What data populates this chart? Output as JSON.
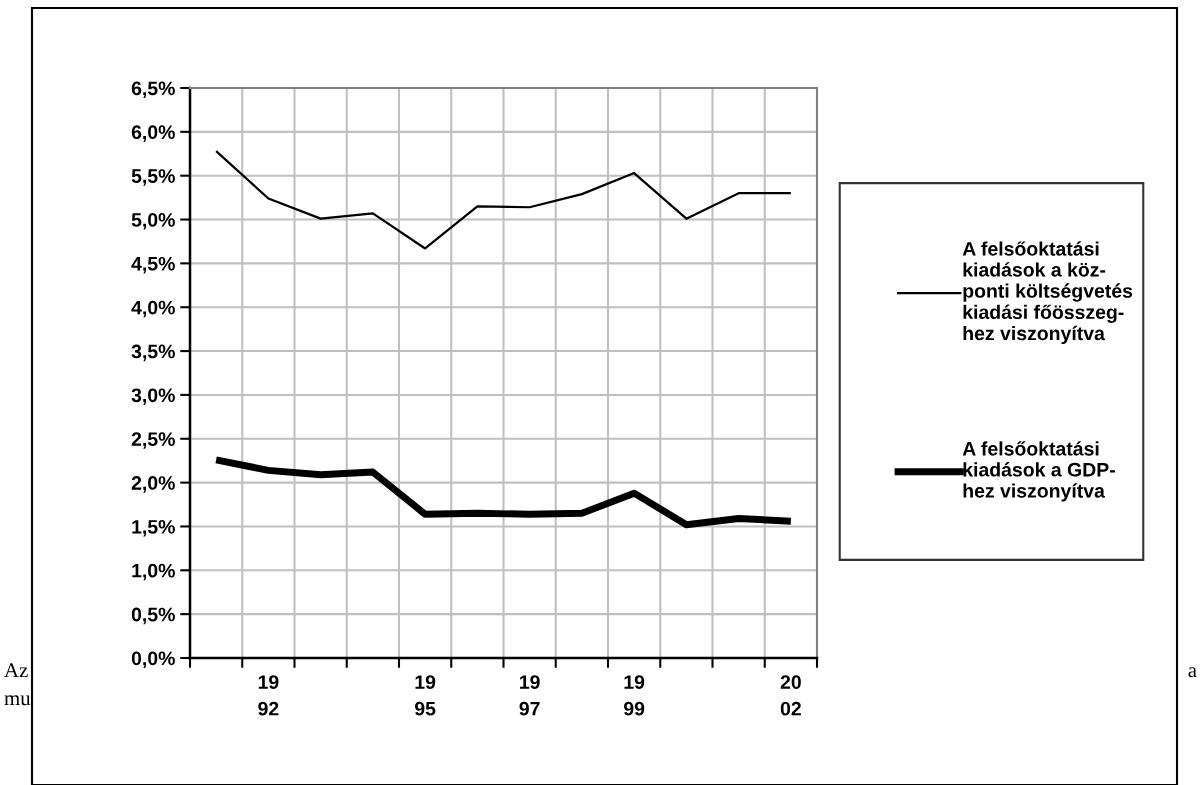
{
  "chart_data": {
    "type": "line",
    "categories": [
      null,
      "19\n92",
      null,
      null,
      "19\n95",
      null,
      "19\n97",
      null,
      "19\n99",
      null,
      null,
      "20\n02"
    ],
    "series": [
      {
        "name": "A felsőoktatási\nkiadások a köz-\nponti költségvetés\nkiadási főösszeg-\nhez viszonyítva",
        "color": "#000000",
        "values": [
          5.78,
          5.24,
          5.01,
          5.07,
          4.67,
          5.15,
          5.14,
          5.29,
          5.53,
          5.01,
          5.3,
          5.3
        ]
      },
      {
        "name": "A felsőoktatási\nkiadások a GDP-\nhez viszonyítva",
        "color": "#000000",
        "values": [
          2.26,
          2.14,
          2.09,
          2.12,
          1.64,
          1.65,
          1.64,
          1.65,
          1.88,
          1.52,
          1.59,
          1.56
        ]
      }
    ],
    "ylim": [
      0,
      6.5
    ],
    "yticks": [
      {
        "value": 0,
        "label": "0,0%"
      },
      {
        "value": 0.5,
        "label": "0,5%"
      },
      {
        "value": 1,
        "label": "1,0%"
      },
      {
        "value": 1.5,
        "label": "1,5%"
      },
      {
        "value": 2,
        "label": "2,0%"
      },
      {
        "value": 2.5,
        "label": "2,5%"
      },
      {
        "value": 3,
        "label": "3,0%"
      },
      {
        "value": 3.5,
        "label": "3,5%"
      },
      {
        "value": 4,
        "label": "4,0%"
      },
      {
        "value": 4.5,
        "label": "4,5%"
      },
      {
        "value": 5,
        "label": "5,0%"
      },
      {
        "value": 5.5,
        "label": "5,5%"
      },
      {
        "value": 6,
        "label": "6,0%"
      },
      {
        "value": 6.5,
        "label": "6,5%"
      }
    ],
    "grid": true,
    "legend": "right",
    "marker": "none",
    "line_style": "solid",
    "annotations": [
      "Az",
      "a",
      "mu"
    ]
  }
}
